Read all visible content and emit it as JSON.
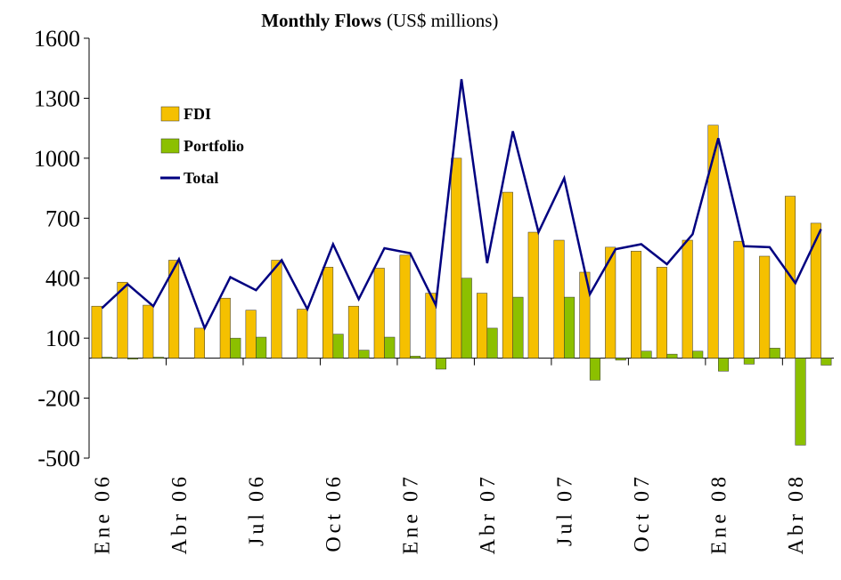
{
  "chart_data": {
    "type": "bar_line",
    "title": "Monthly Flows",
    "subtitle": "(US$ millions)",
    "categories": [
      "Ene 06",
      null,
      null,
      "Abr 06",
      null,
      null,
      "Jul 06",
      null,
      null,
      "Oct 06",
      null,
      null,
      "Ene 07",
      null,
      null,
      "Abr 07",
      null,
      null,
      "Jul 07",
      null,
      null,
      "Oct 07",
      null,
      null,
      "Ene 08",
      null,
      null,
      "Abr 08",
      null
    ],
    "series": [
      {
        "name": "FDI",
        "kind": "bar",
        "color": "#f5c000",
        "values": [
          260,
          380,
          265,
          490,
          150,
          300,
          240,
          490,
          245,
          455,
          260,
          450,
          515,
          325,
          1000,
          325,
          830,
          630,
          590,
          430,
          555,
          535,
          455,
          590,
          1165,
          585,
          510,
          810,
          675
        ]
      },
      {
        "name": "Portfolio",
        "kind": "bar",
        "color": "#8cc000",
        "values": [
          5,
          -5,
          5,
          0,
          0,
          100,
          105,
          0,
          0,
          120,
          40,
          105,
          10,
          -55,
          400,
          150,
          305,
          0,
          305,
          -110,
          -10,
          35,
          20,
          35,
          -65,
          -30,
          50,
          -435,
          -35
        ]
      },
      {
        "name": "Total",
        "kind": "line",
        "color": "#000080",
        "values": [
          250,
          370,
          260,
          495,
          150,
          405,
          340,
          490,
          245,
          570,
          295,
          550,
          525,
          265,
          1395,
          475,
          1135,
          630,
          900,
          320,
          545,
          570,
          470,
          620,
          1100,
          560,
          555,
          375,
          645
        ]
      }
    ],
    "ylim": [
      -500,
      1600
    ],
    "yticks": [
      -500,
      -200,
      100,
      400,
      700,
      1000,
      1300,
      1600
    ]
  }
}
